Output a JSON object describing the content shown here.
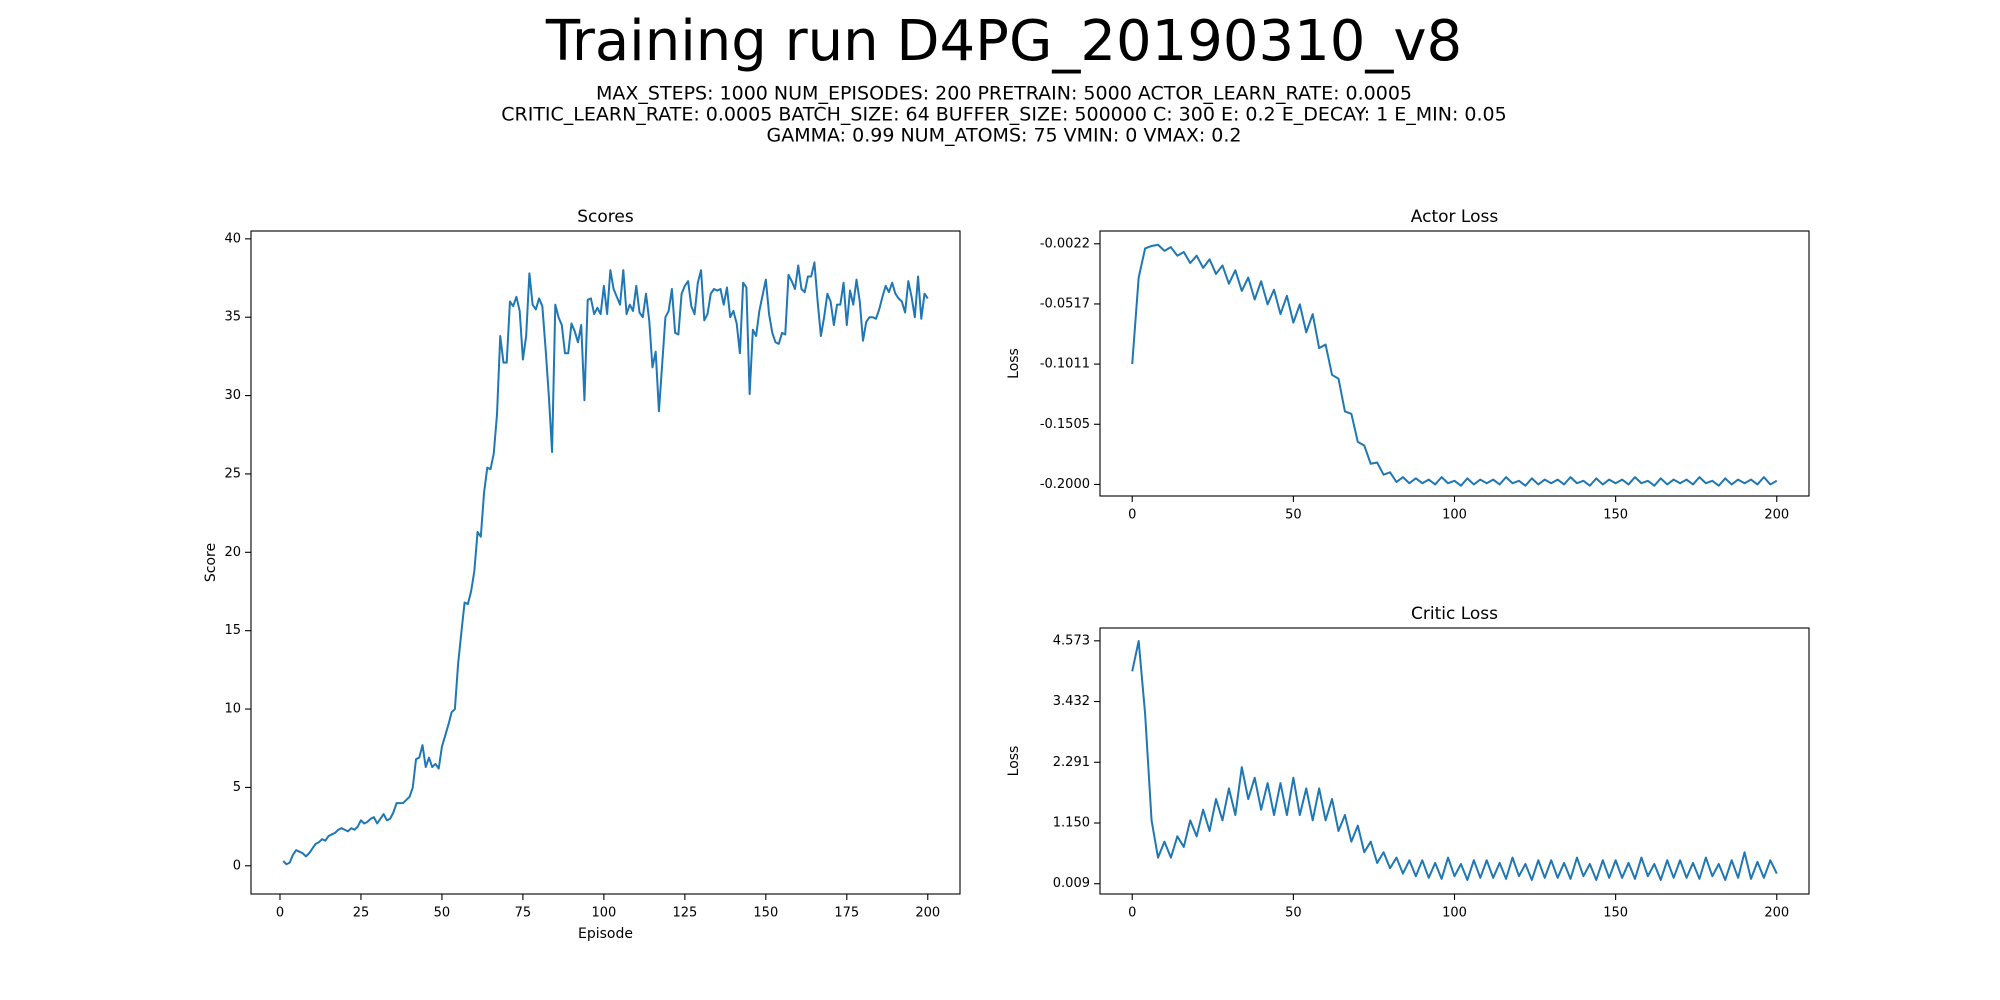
{
  "title": "Training run D4PG_20190310_v8",
  "subtitle": [
    "MAX_STEPS: 1000  NUM_EPISODES: 200  PRETRAIN: 5000  ACTOR_LEARN_RATE: 0.0005",
    "CRITIC_LEARN_RATE: 0.0005  BATCH_SIZE: 64  BUFFER_SIZE: 500000  C: 300  E: 0.2  E_DECAY: 1  E_MIN: 0.05",
    "GAMMA: 0.99  NUM_ATOMS: 75  VMIN: 0  VMAX: 0.2"
  ],
  "chart_data": [
    {
      "type": "line",
      "title": "Scores",
      "x_label": "Episode",
      "y_label": "Score",
      "color": "#1f77b4",
      "grid": false,
      "xlim": [
        -8.95,
        209.95
      ],
      "ylim": [
        -1.8,
        40.5
      ],
      "xticks": [
        0,
        25,
        50,
        75,
        100,
        125,
        150,
        175,
        200
      ],
      "yticks": [
        0,
        5,
        10,
        15,
        20,
        25,
        30,
        35,
        40
      ],
      "x": [
        1,
        2,
        3,
        4,
        5,
        6,
        7,
        8,
        9,
        10,
        11,
        12,
        13,
        14,
        15,
        16,
        17,
        18,
        19,
        20,
        21,
        22,
        23,
        24,
        25,
        26,
        27,
        28,
        29,
        30,
        31,
        32,
        33,
        34,
        35,
        36,
        37,
        38,
        39,
        40,
        41,
        42,
        43,
        44,
        45,
        46,
        47,
        48,
        49,
        50,
        51,
        52,
        53,
        54,
        55,
        56,
        57,
        58,
        59,
        60,
        61,
        62,
        63,
        64,
        65,
        66,
        67,
        68,
        69,
        70,
        71,
        72,
        73,
        74,
        75,
        76,
        77,
        78,
        79,
        80,
        81,
        82,
        83,
        84,
        85,
        86,
        87,
        88,
        89,
        90,
        91,
        92,
        93,
        94,
        95,
        96,
        97,
        98,
        99,
        100,
        101,
        102,
        103,
        104,
        105,
        106,
        107,
        108,
        109,
        110,
        111,
        112,
        113,
        114,
        115,
        116,
        117,
        118,
        119,
        120,
        121,
        122,
        123,
        124,
        125,
        126,
        127,
        128,
        129,
        130,
        131,
        132,
        133,
        134,
        135,
        136,
        137,
        138,
        139,
        140,
        141,
        142,
        143,
        144,
        145,
        146,
        147,
        148,
        149,
        150,
        151,
        152,
        153,
        154,
        155,
        156,
        157,
        158,
        159,
        160,
        161,
        162,
        163,
        164,
        165,
        166,
        167,
        168,
        169,
        170,
        171,
        172,
        173,
        174,
        175,
        176,
        177,
        178,
        179,
        180,
        181,
        182,
        183,
        184,
        185,
        186,
        187,
        188,
        189,
        190,
        191,
        192,
        193,
        194,
        195,
        196,
        197,
        198,
        199,
        200
      ],
      "values": [
        0.3,
        0.1,
        0.2,
        0.7,
        1.0,
        0.9,
        0.8,
        0.6,
        0.8,
        1.1,
        1.4,
        1.5,
        1.7,
        1.6,
        1.9,
        2.0,
        2.1,
        2.3,
        2.4,
        2.3,
        2.2,
        2.4,
        2.3,
        2.5,
        2.9,
        2.7,
        2.8,
        3.0,
        3.1,
        2.7,
        3.0,
        3.3,
        2.9,
        3.0,
        3.4,
        4.0,
        4.0,
        4.0,
        4.2,
        4.4,
        5.0,
        6.8,
        6.9,
        7.7,
        6.3,
        6.9,
        6.3,
        6.5,
        6.2,
        7.6,
        8.3,
        9.0,
        9.8,
        10.0,
        12.9,
        14.9,
        16.8,
        16.7,
        17.5,
        18.8,
        21.3,
        21.0,
        23.8,
        25.4,
        25.3,
        26.3,
        28.8,
        33.8,
        32.1,
        32.1,
        36.0,
        35.7,
        36.3,
        35.4,
        32.3,
        33.8,
        37.8,
        35.8,
        35.5,
        36.2,
        35.7,
        33.0,
        30.0,
        26.4,
        35.8,
        35.0,
        34.5,
        32.7,
        32.7,
        34.6,
        34.1,
        33.4,
        34.5,
        29.7,
        36.1,
        36.2,
        35.2,
        35.6,
        35.2,
        37.0,
        35.2,
        38.0,
        36.8,
        36.3,
        35.8,
        38.0,
        35.2,
        35.8,
        35.4,
        37.0,
        35.3,
        35.0,
        36.5,
        34.8,
        31.8,
        32.8,
        29.0,
        32.0,
        35.0,
        35.4,
        36.8,
        34.0,
        33.9,
        36.5,
        37.0,
        37.3,
        35.7,
        35.2,
        37.2,
        38.0,
        34.8,
        35.2,
        36.5,
        36.8,
        36.7,
        36.8,
        35.8,
        36.9,
        35.0,
        35.4,
        34.6,
        32.7,
        37.2,
        36.9,
        30.1,
        34.2,
        33.8,
        35.4,
        36.4,
        37.4,
        35.2,
        34.0,
        33.4,
        33.3,
        34.0,
        33.9,
        37.7,
        37.3,
        36.8,
        38.3,
        36.8,
        36.6,
        37.6,
        37.6,
        38.5,
        36.0,
        33.8,
        35.0,
        36.5,
        36.0,
        34.5,
        35.8,
        35.8,
        37.2,
        34.5,
        36.7,
        35.8,
        37.4,
        36.0,
        33.5,
        34.7,
        35.0,
        35.0,
        34.9,
        35.5,
        36.3,
        37.0,
        36.6,
        37.2,
        36.5,
        36.2,
        36.0,
        35.3,
        37.3,
        36.3,
        35.0,
        37.6,
        34.9,
        36.5,
        36.2
      ]
    },
    {
      "type": "line",
      "title": "Actor Loss",
      "y_label": "Loss",
      "color": "#1f77b4",
      "grid": false,
      "xlim": [
        -10,
        210
      ],
      "ylim": [
        -0.2095,
        0.0083
      ],
      "xticks": [
        0,
        50,
        100,
        150,
        200
      ],
      "yticks": [
        {
          "value": -0.2,
          "label": "-0.2000"
        },
        {
          "value": -0.15055,
          "label": "-0.1505"
        },
        {
          "value": -0.1011,
          "label": "-0.1011"
        },
        {
          "value": -0.05165,
          "label": "-0.0517"
        },
        {
          "value": -0.0022,
          "label": "-0.0022"
        }
      ],
      "x": [
        0,
        2,
        4,
        6,
        8,
        10,
        12,
        14,
        16,
        18,
        20,
        22,
        24,
        26,
        28,
        30,
        32,
        34,
        36,
        38,
        40,
        42,
        44,
        46,
        48,
        50,
        52,
        54,
        56,
        58,
        60,
        62,
        64,
        66,
        68,
        70,
        72,
        74,
        76,
        78,
        80,
        82,
        84,
        86,
        88,
        90,
        92,
        94,
        96,
        98,
        100,
        102,
        104,
        106,
        108,
        110,
        112,
        114,
        116,
        118,
        120,
        122,
        124,
        126,
        128,
        130,
        132,
        134,
        136,
        138,
        140,
        142,
        144,
        146,
        148,
        150,
        152,
        154,
        156,
        158,
        160,
        162,
        164,
        166,
        168,
        170,
        172,
        174,
        176,
        178,
        180,
        182,
        184,
        186,
        188,
        190,
        192,
        194,
        196,
        198,
        200
      ],
      "values": [
        -0.101,
        -0.03,
        -0.006,
        -0.004,
        -0.003,
        -0.008,
        -0.005,
        -0.012,
        -0.009,
        -0.018,
        -0.012,
        -0.022,
        -0.015,
        -0.027,
        -0.02,
        -0.035,
        -0.024,
        -0.041,
        -0.03,
        -0.048,
        -0.033,
        -0.052,
        -0.04,
        -0.06,
        -0.045,
        -0.067,
        -0.052,
        -0.075,
        -0.06,
        -0.088,
        -0.085,
        -0.11,
        -0.113,
        -0.14,
        -0.142,
        -0.165,
        -0.168,
        -0.183,
        -0.182,
        -0.192,
        -0.19,
        -0.198,
        -0.194,
        -0.199,
        -0.195,
        -0.199,
        -0.196,
        -0.2,
        -0.194,
        -0.199,
        -0.197,
        -0.201,
        -0.195,
        -0.2,
        -0.196,
        -0.199,
        -0.196,
        -0.2,
        -0.194,
        -0.199,
        -0.197,
        -0.201,
        -0.195,
        -0.2,
        -0.196,
        -0.199,
        -0.196,
        -0.2,
        -0.194,
        -0.199,
        -0.197,
        -0.201,
        -0.195,
        -0.2,
        -0.196,
        -0.199,
        -0.196,
        -0.2,
        -0.194,
        -0.199,
        -0.197,
        -0.201,
        -0.195,
        -0.2,
        -0.196,
        -0.199,
        -0.196,
        -0.2,
        -0.194,
        -0.199,
        -0.197,
        -0.201,
        -0.195,
        -0.2,
        -0.196,
        -0.199,
        -0.196,
        -0.2,
        -0.194,
        -0.2,
        -0.197
      ]
    },
    {
      "type": "line",
      "title": "Critic Loss",
      "y_label": "Loss",
      "color": "#1f77b4",
      "grid": false,
      "xlim": [
        -10,
        210
      ],
      "ylim": [
        -0.184,
        4.814
      ],
      "xticks": [
        0,
        50,
        100,
        150,
        200
      ],
      "yticks": [
        0.009,
        {
          "value": 1.15,
          "label": "1.150"
        },
        2.291,
        3.432,
        4.573
      ],
      "x": [
        0,
        2,
        4,
        6,
        8,
        10,
        12,
        14,
        16,
        18,
        20,
        22,
        24,
        26,
        28,
        30,
        32,
        34,
        36,
        38,
        40,
        42,
        44,
        46,
        48,
        50,
        52,
        54,
        56,
        58,
        60,
        62,
        64,
        66,
        68,
        70,
        72,
        74,
        76,
        78,
        80,
        82,
        84,
        86,
        88,
        90,
        92,
        94,
        96,
        98,
        100,
        102,
        104,
        106,
        108,
        110,
        112,
        114,
        116,
        118,
        120,
        122,
        124,
        126,
        128,
        130,
        132,
        134,
        136,
        138,
        140,
        142,
        144,
        146,
        148,
        150,
        152,
        154,
        156,
        158,
        160,
        162,
        164,
        166,
        168,
        170,
        172,
        174,
        176,
        178,
        180,
        182,
        184,
        186,
        188,
        190,
        192,
        194,
        196,
        198,
        200
      ],
      "values": [
        4.0,
        4.57,
        3.2,
        1.2,
        0.5,
        0.8,
        0.5,
        0.9,
        0.7,
        1.2,
        0.9,
        1.4,
        1.0,
        1.6,
        1.2,
        1.8,
        1.3,
        2.2,
        1.6,
        2.0,
        1.4,
        1.9,
        1.3,
        1.9,
        1.3,
        2.0,
        1.3,
        1.8,
        1.2,
        1.8,
        1.2,
        1.6,
        1.0,
        1.3,
        0.8,
        1.1,
        0.6,
        0.8,
        0.4,
        0.6,
        0.3,
        0.5,
        0.2,
        0.45,
        0.15,
        0.45,
        0.12,
        0.4,
        0.1,
        0.5,
        0.15,
        0.38,
        0.08,
        0.45,
        0.12,
        0.45,
        0.12,
        0.4,
        0.1,
        0.5,
        0.15,
        0.38,
        0.08,
        0.45,
        0.12,
        0.45,
        0.12,
        0.4,
        0.1,
        0.5,
        0.15,
        0.38,
        0.08,
        0.45,
        0.12,
        0.45,
        0.12,
        0.4,
        0.1,
        0.5,
        0.15,
        0.38,
        0.08,
        0.45,
        0.12,
        0.45,
        0.12,
        0.4,
        0.1,
        0.5,
        0.15,
        0.38,
        0.08,
        0.45,
        0.12,
        0.6,
        0.1,
        0.42,
        0.12,
        0.45,
        0.2
      ]
    }
  ]
}
